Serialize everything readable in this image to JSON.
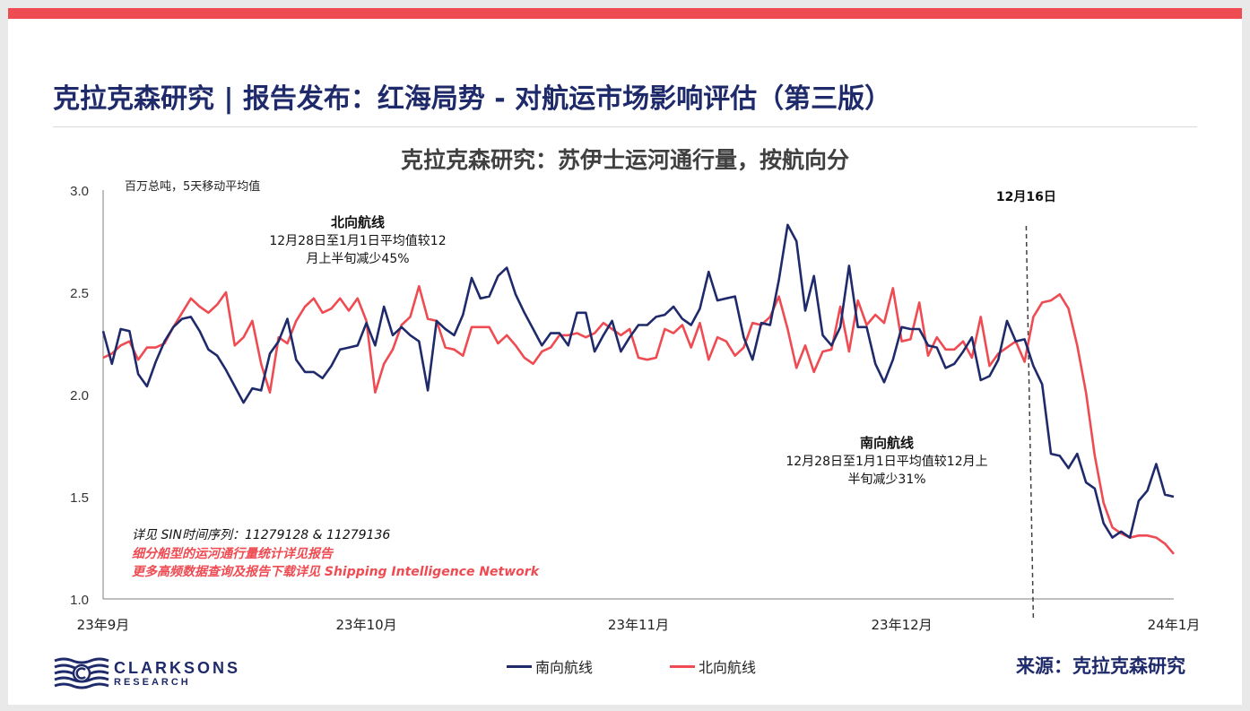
{
  "title": "克拉克森研究 | 报告发布：红海局势 - 对航运市场影响评估（第三版）",
  "colors": {
    "accent_bar": "#ee4b52",
    "title": "#1f2a6b",
    "southbound": "#1f2a6b",
    "northbound": "#ee4b52"
  },
  "chart_data": {
    "type": "line",
    "title": "克拉克森研究：苏伊士运河通行量，按航向分",
    "ylabel": "百万总吨，5天移动平均值",
    "ylim": [
      1.0,
      3.0
    ],
    "yticks": [
      "3.0",
      "2.5",
      "2.0",
      "1.5",
      "1.0"
    ],
    "xticks": [
      "23年9月",
      "23年10月",
      "23年11月",
      "23年12月",
      "24年1月"
    ],
    "x": [
      "2023-09-01",
      "2023-09-02",
      "2023-09-03",
      "2023-09-04",
      "2023-09-05",
      "2023-09-06",
      "2023-09-07",
      "2023-09-08",
      "2023-09-09",
      "2023-09-10",
      "2023-09-11",
      "2023-09-12",
      "2023-09-13",
      "2023-09-14",
      "2023-09-15",
      "2023-09-16",
      "2023-09-17",
      "2023-09-18",
      "2023-09-19",
      "2023-09-20",
      "2023-09-21",
      "2023-09-22",
      "2023-09-23",
      "2023-09-24",
      "2023-09-25",
      "2023-09-26",
      "2023-09-27",
      "2023-09-28",
      "2023-09-29",
      "2023-09-30",
      "2023-10-01",
      "2023-10-02",
      "2023-10-03",
      "2023-10-04",
      "2023-10-05",
      "2023-10-06",
      "2023-10-07",
      "2023-10-08",
      "2023-10-09",
      "2023-10-10",
      "2023-10-11",
      "2023-10-12",
      "2023-10-13",
      "2023-10-14",
      "2023-10-15",
      "2023-10-16",
      "2023-10-17",
      "2023-10-18",
      "2023-10-19",
      "2023-10-20",
      "2023-10-21",
      "2023-10-22",
      "2023-10-23",
      "2023-10-24",
      "2023-10-25",
      "2023-10-26",
      "2023-10-27",
      "2023-10-28",
      "2023-10-29",
      "2023-10-30",
      "2023-10-31",
      "2023-11-01",
      "2023-11-02",
      "2023-11-03",
      "2023-11-04",
      "2023-11-05",
      "2023-11-06",
      "2023-11-07",
      "2023-11-08",
      "2023-11-09",
      "2023-11-10",
      "2023-11-11",
      "2023-11-12",
      "2023-11-13",
      "2023-11-14",
      "2023-11-15",
      "2023-11-16",
      "2023-11-17",
      "2023-11-18",
      "2023-11-19",
      "2023-11-20",
      "2023-11-21",
      "2023-11-22",
      "2023-11-23",
      "2023-11-24",
      "2023-11-25",
      "2023-11-26",
      "2023-11-27",
      "2023-11-28",
      "2023-11-29",
      "2023-11-30",
      "2023-12-01",
      "2023-12-02",
      "2023-12-03",
      "2023-12-04",
      "2023-12-05",
      "2023-12-06",
      "2023-12-07",
      "2023-12-08",
      "2023-12-09",
      "2023-12-10",
      "2023-12-11",
      "2023-12-12",
      "2023-12-13",
      "2023-12-14",
      "2023-12-15",
      "2023-12-16",
      "2023-12-17",
      "2023-12-18",
      "2023-12-19",
      "2023-12-20",
      "2023-12-21",
      "2023-12-22",
      "2023-12-23",
      "2023-12-24",
      "2023-12-25",
      "2023-12-26",
      "2023-12-27",
      "2023-12-28",
      "2023-12-29",
      "2023-12-30",
      "2023-12-31",
      "2024-01-01"
    ],
    "series": [
      {
        "name": "南向航线",
        "color": "#1f2a6b",
        "values": [
          2.31,
          2.15,
          2.32,
          2.31,
          2.1,
          2.04,
          2.16,
          2.26,
          2.33,
          2.37,
          2.38,
          2.31,
          2.22,
          2.19,
          2.12,
          2.04,
          1.96,
          2.03,
          2.02,
          2.2,
          2.26,
          2.37,
          2.17,
          2.11,
          2.11,
          2.08,
          2.14,
          2.22,
          2.23,
          2.24,
          2.35,
          2.24,
          2.43,
          2.29,
          2.33,
          2.29,
          2.26,
          2.02,
          2.36,
          2.32,
          2.29,
          2.39,
          2.57,
          2.47,
          2.48,
          2.58,
          2.62,
          2.49,
          2.4,
          2.32,
          2.24,
          2.3,
          2.3,
          2.24,
          2.4,
          2.4,
          2.21,
          2.29,
          2.36,
          2.21,
          2.28,
          2.34,
          2.34,
          2.38,
          2.39,
          2.43,
          2.37,
          2.34,
          2.42,
          2.6,
          2.46,
          2.47,
          2.48,
          2.28,
          2.17,
          2.35,
          2.34,
          2.56,
          2.83,
          2.75,
          2.41,
          2.58,
          2.29,
          2.24,
          2.33,
          2.63,
          2.33,
          2.33,
          2.15,
          2.06,
          2.17,
          2.33,
          2.32,
          2.32,
          2.24,
          2.23,
          2.13,
          2.15,
          2.21,
          2.28,
          2.07,
          2.09,
          2.17,
          2.36,
          2.26,
          2.27,
          2.14,
          2.05,
          1.71,
          1.7,
          1.64,
          1.71,
          1.57,
          1.54,
          1.37,
          1.3,
          1.33,
          1.3,
          1.48,
          1.53,
          1.66,
          1.51,
          1.5
        ]
      },
      {
        "name": "北向航线",
        "color": "#ee4b52",
        "values": [
          2.18,
          2.2,
          2.24,
          2.26,
          2.17,
          2.23,
          2.23,
          2.25,
          2.33,
          2.4,
          2.47,
          2.43,
          2.4,
          2.44,
          2.5,
          2.24,
          2.28,
          2.36,
          2.15,
          2.01,
          2.28,
          2.25,
          2.36,
          2.43,
          2.47,
          2.4,
          2.42,
          2.47,
          2.41,
          2.47,
          2.36,
          2.01,
          2.15,
          2.22,
          2.34,
          2.38,
          2.53,
          2.37,
          2.36,
          2.23,
          2.22,
          2.19,
          2.33,
          2.33,
          2.33,
          2.25,
          2.29,
          2.24,
          2.18,
          2.15,
          2.21,
          2.23,
          2.29,
          2.29,
          2.3,
          2.28,
          2.3,
          2.35,
          2.32,
          2.29,
          2.32,
          2.18,
          2.17,
          2.18,
          2.32,
          2.3,
          2.34,
          2.23,
          2.35,
          2.17,
          2.28,
          2.26,
          2.19,
          2.23,
          2.35,
          2.34,
          2.38,
          2.48,
          2.32,
          2.13,
          2.24,
          2.11,
          2.21,
          2.22,
          2.43,
          2.21,
          2.46,
          2.34,
          2.39,
          2.35,
          2.52,
          2.26,
          2.27,
          2.45,
          2.19,
          2.28,
          2.22,
          2.22,
          2.26,
          2.18,
          2.38,
          2.14,
          2.2,
          2.23,
          2.26,
          2.16,
          2.38,
          2.45,
          2.46,
          2.49,
          2.42,
          2.24,
          2.01,
          1.7,
          1.47,
          1.35,
          1.32,
          1.3,
          1.31,
          1.31,
          1.3,
          1.27,
          1.22
        ]
      }
    ],
    "annotations": {
      "north_title": "北向航线",
      "north_line1": "12月28日至1月1日平均值较12",
      "north_line2": "月上半旬减少45%",
      "south_title": "南向航线",
      "south_line1": "12月28日至1月1日平均值较12月上",
      "south_line2": "半旬减少31%",
      "marker_label": "12月16日",
      "marker_date": "2023-12-16",
      "note1": "详见 SIN时间序列：11279128 & 11279136",
      "note2": "细分船型的运河通行量统计详见报告",
      "note3": "更多高频数据查询及报告下载详见 Shipping Intelligence Network"
    },
    "legend": [
      "南向航线",
      "北向航线"
    ],
    "legend_placement": "bottom-center",
    "grid": false
  },
  "footer": {
    "logo_main": "CLARKSONS",
    "logo_sub": "RESEARCH",
    "source": "来源：克拉克森研究"
  }
}
